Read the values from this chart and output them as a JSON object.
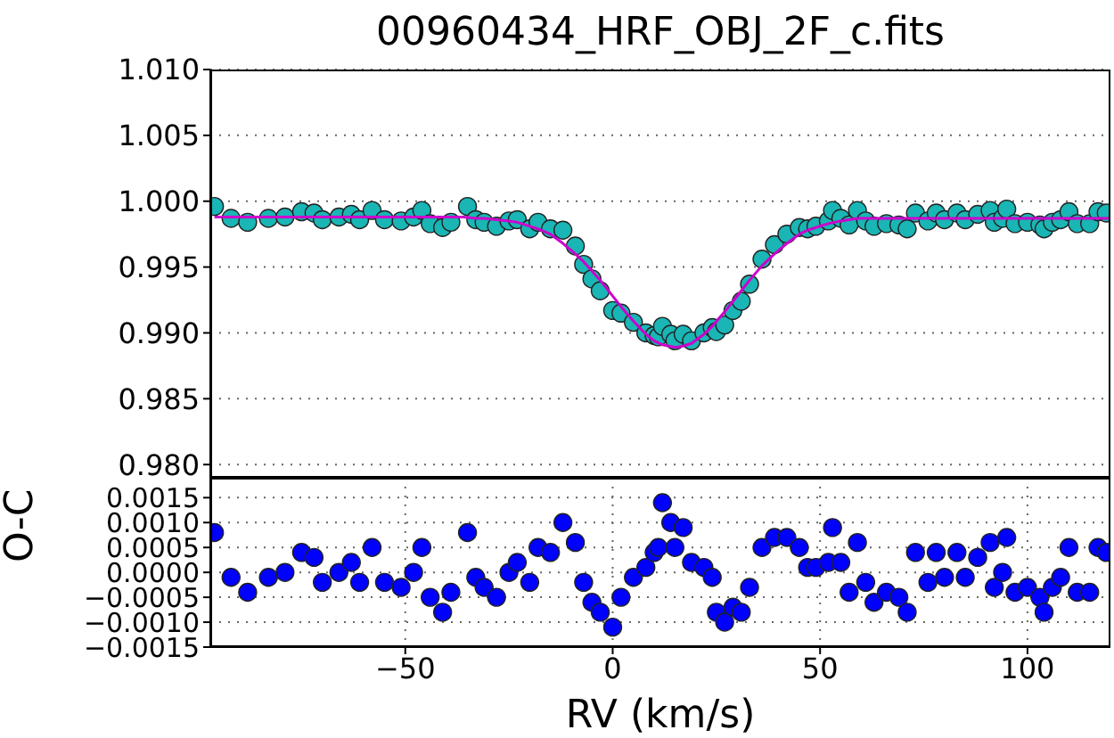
{
  "chart_data": [
    {
      "type": "scatter",
      "title": "00960434_HRF_OBJ_2F_c.fits",
      "xlim": [
        -97,
        120
      ],
      "xticks": [
        -50,
        0,
        50,
        100
      ],
      "ylim": [
        0.979,
        1.01
      ],
      "yticks": [
        {
          "value": 0.98,
          "label": "0.980"
        },
        {
          "value": 0.985,
          "label": "0.985"
        },
        {
          "value": 0.99,
          "label": "0.990"
        },
        {
          "value": 0.995,
          "label": "0.995"
        },
        {
          "value": 1.0,
          "label": "1.000"
        },
        {
          "value": 1.005,
          "label": "1.005"
        },
        {
          "value": 1.01,
          "label": "1.010"
        }
      ],
      "grid": true,
      "tick_labels": "y",
      "marker": "circle",
      "series": [
        {
          "color": "#1ab5b5",
          "x": [
            -96,
            -92,
            -88,
            -83,
            -79,
            -75,
            -72,
            -70,
            -66,
            -63,
            -61,
            -58,
            -55,
            -51,
            -48,
            -46,
            -44,
            -41,
            -39,
            -35,
            -33,
            -31,
            -28,
            -25,
            -23,
            -20,
            -18,
            -15,
            -12,
            -9,
            -7,
            -5,
            -3,
            0,
            2,
            5,
            8,
            10,
            11,
            12,
            14,
            15,
            17,
            19,
            22,
            24,
            25,
            27,
            29,
            31,
            33,
            36,
            39,
            42,
            45,
            47,
            49,
            52,
            53,
            55,
            57,
            59,
            61,
            63,
            66,
            69,
            71,
            73,
            76,
            78,
            80,
            83,
            85,
            88,
            91,
            92,
            94,
            95,
            97,
            100,
            103,
            104,
            106,
            108,
            110,
            112,
            115,
            117,
            119
          ],
          "values": [
            0.9996,
            0.9987,
            0.9984,
            0.9987,
            0.9988,
            0.9992,
            0.9991,
            0.9986,
            0.9988,
            0.999,
            0.9986,
            0.9993,
            0.9986,
            0.9985,
            0.9988,
            0.9993,
            0.9983,
            0.998,
            0.9984,
            0.9996,
            0.9986,
            0.9984,
            0.9981,
            0.9985,
            0.9986,
            0.9979,
            0.9984,
            0.9979,
            0.9978,
            0.9966,
            0.9952,
            0.9941,
            0.9932,
            0.9917,
            0.9915,
            0.9908,
            0.99,
            0.9898,
            0.9897,
            0.9905,
            0.9899,
            0.9894,
            0.9899,
            0.9894,
            0.99,
            0.9904,
            0.9901,
            0.9906,
            0.9917,
            0.9924,
            0.9937,
            0.9956,
            0.9967,
            0.9975,
            0.998,
            0.9979,
            0.9981,
            0.9985,
            0.9993,
            0.9987,
            0.9982,
            0.9993,
            0.9985,
            0.9981,
            0.9983,
            0.9982,
            0.9979,
            0.9991,
            0.9985,
            0.9991,
            0.9986,
            0.9991,
            0.9986,
            0.999,
            0.9993,
            0.9984,
            0.9987,
            0.9994,
            0.9983,
            0.9984,
            0.9982,
            0.9979,
            0.9984,
            0.9986,
            0.9992,
            0.9983,
            0.9983,
            0.9992,
            0.9991
          ]
        },
        {
          "type": "line",
          "marker": "none",
          "color": "#cc00cc",
          "x": [
            -96,
            -36,
            -33,
            -31,
            -28,
            -25,
            -23,
            -20,
            -18,
            -15,
            -12,
            -9,
            -7,
            -5,
            -3,
            0,
            2,
            5,
            8,
            10,
            12,
            15,
            17,
            19,
            22,
            24,
            27,
            29,
            31,
            33,
            36,
            39,
            42,
            45,
            47,
            49,
            52,
            55,
            57,
            59,
            61,
            120
          ],
          "values": [
            0.9988,
            0.9988,
            0.9987,
            0.9987,
            0.9986,
            0.9985,
            0.9984,
            0.9981,
            0.9979,
            0.9975,
            0.9968,
            0.996,
            0.9954,
            0.9947,
            0.994,
            0.9928,
            0.992,
            0.9909,
            0.9899,
            0.9894,
            0.9891,
            0.9889,
            0.989,
            0.9892,
            0.9899,
            0.9905,
            0.9916,
            0.9924,
            0.9932,
            0.994,
            0.9951,
            0.996,
            0.9968,
            0.9975,
            0.9978,
            0.998,
            0.9983,
            0.9985,
            0.9986,
            0.9987,
            0.9987,
            0.9987
          ]
        }
      ]
    },
    {
      "type": "scatter",
      "xlabel": "RV (km/s)",
      "ylabel": "O-C",
      "xlim": [
        -97,
        120
      ],
      "xticks": [
        {
          "value": -50,
          "label": "−50"
        },
        0,
        50,
        100
      ],
      "ylim": [
        -0.0015,
        0.0019
      ],
      "yticks": [
        {
          "value": -0.0015,
          "label": "−0.0015"
        },
        {
          "value": -0.001,
          "label": "−0.0010"
        },
        {
          "value": -0.0005,
          "label": "−0.0005"
        },
        {
          "value": 0,
          "label": "0.0000"
        },
        {
          "value": 0.0005,
          "label": "0.0005"
        },
        {
          "value": 0.001,
          "label": "0.0010"
        },
        {
          "value": 0.0015,
          "label": "0.0015"
        }
      ],
      "grid": true,
      "marker": "circle",
      "series": [
        {
          "color": "#0000ff",
          "x": [
            -96,
            -92,
            -88,
            -83,
            -79,
            -75,
            -72,
            -70,
            -66,
            -63,
            -61,
            -58,
            -55,
            -51,
            -48,
            -46,
            -44,
            -41,
            -39,
            -35,
            -33,
            -31,
            -28,
            -25,
            -23,
            -20,
            -18,
            -15,
            -12,
            -9,
            -7,
            -5,
            -3,
            0,
            2,
            5,
            8,
            10,
            11,
            12,
            14,
            15,
            17,
            19,
            22,
            24,
            25,
            27,
            29,
            31,
            33,
            36,
            39,
            42,
            45,
            47,
            49,
            52,
            53,
            55,
            57,
            59,
            61,
            63,
            66,
            69,
            71,
            73,
            76,
            78,
            80,
            83,
            85,
            88,
            91,
            92,
            94,
            95,
            97,
            100,
            103,
            104,
            106,
            108,
            110,
            112,
            115,
            117,
            119
          ],
          "values": [
            0.0008,
            -0.0001,
            -0.0004,
            -0.0001,
            0,
            0.0004,
            0.0003,
            -0.0002,
            0,
            0.0002,
            -0.0002,
            0.0005,
            -0.0002,
            -0.0003,
            0,
            0.0005,
            -0.0005,
            -0.0008,
            -0.0004,
            0.0008,
            -0.0001,
            -0.0003,
            -0.0005,
            0,
            0.0002,
            -0.0002,
            0.0005,
            0.0004,
            0.001,
            0.0006,
            -0.0002,
            -0.0006,
            -0.0008,
            -0.0011,
            -0.0005,
            -0.0001,
            0.0001,
            0.0004,
            0.0005,
            0.0014,
            0.001,
            0.0005,
            0.0009,
            0.0002,
            0.0001,
            -0.0001,
            -0.0008,
            -0.001,
            -0.0007,
            -0.0008,
            -0.0003,
            0.0005,
            0.0007,
            0.0007,
            0.0005,
            0.0001,
            0.0001,
            0.0002,
            0.0009,
            0.0002,
            -0.0004,
            0.0006,
            -0.0002,
            -0.0006,
            -0.0004,
            -0.0005,
            -0.0008,
            0.0004,
            -0.0002,
            0.0004,
            -0.0001,
            0.0004,
            -0.0001,
            0.0003,
            0.0006,
            -0.0003,
            0,
            0.0007,
            -0.0004,
            -0.0003,
            -0.0005,
            -0.0008,
            -0.0003,
            -0.0001,
            0.0005,
            -0.0004,
            -0.0004,
            0.0005,
            0.0004
          ]
        }
      ]
    }
  ]
}
